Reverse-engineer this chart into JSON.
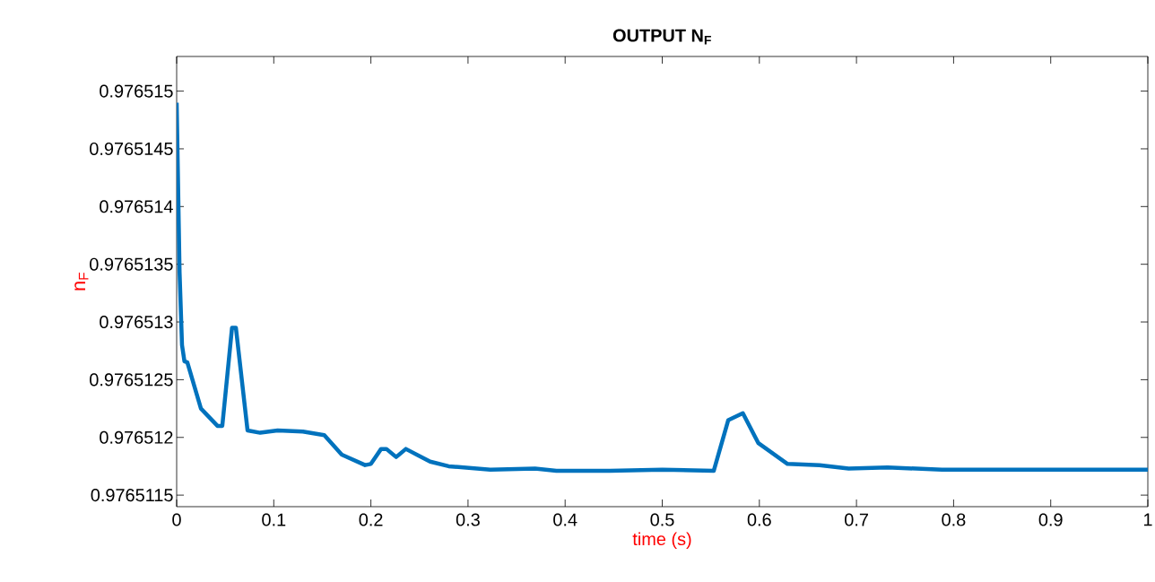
{
  "chart_data": {
    "type": "line",
    "title": "OUTPUT N$_{F}$",
    "xlabel": "time (s)",
    "ylabel": "n$_{F}$",
    "xlim": [
      0,
      1
    ],
    "xticks": [
      0,
      0.1,
      0.2,
      0.3,
      0.4,
      0.5,
      0.6,
      0.7,
      0.8,
      0.9,
      1
    ],
    "ylim": [
      0.9765114,
      0.9765153
    ],
    "yticks": [
      0.9765115,
      0.976512,
      0.9765125,
      0.976513,
      0.9765135,
      0.976514,
      0.9765145,
      0.976515
    ],
    "grid": false,
    "line_style": "solid",
    "series": [
      {
        "color": "#0072bd",
        "x": [
          0,
          0.003,
          0.0055,
          0.008,
          0.011,
          0.025,
          0.042,
          0.047,
          0.057,
          0.061,
          0.073,
          0.086,
          0.104,
          0.13,
          0.152,
          0.17,
          0.194,
          0.2,
          0.2105,
          0.216,
          0.226,
          0.236,
          0.261,
          0.28,
          0.323,
          0.369,
          0.391,
          0.446,
          0.5,
          0.553,
          0.568,
          0.583,
          0.599,
          0.629,
          0.662,
          0.692,
          0.732,
          0.788,
          0.85,
          0.92,
          1
        ],
        "values": [
          0.9765149,
          0.97651343,
          0.9765128,
          0.97651266,
          0.97651265,
          0.97651225,
          0.9765121,
          0.9765121,
          0.97651295,
          0.97651295,
          0.97651206,
          0.97651204,
          0.97651206,
          0.97651205,
          0.97651202,
          0.97651185,
          0.97651176,
          0.97651177,
          0.9765119,
          0.9765119,
          0.97651183,
          0.9765119,
          0.97651179,
          0.97651175,
          0.97651172,
          0.97651173,
          0.97651171,
          0.97651171,
          0.97651172,
          0.97651171,
          0.97651215,
          0.97651221,
          0.97651195,
          0.97651177,
          0.97651176,
          0.97651173,
          0.97651174,
          0.97651172,
          0.97651172,
          0.97651172,
          0.97651172
        ]
      }
    ]
  }
}
